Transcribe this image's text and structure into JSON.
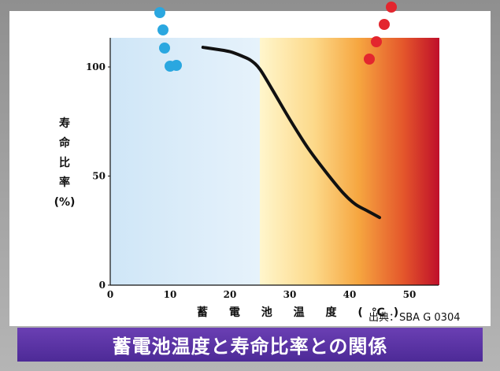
{
  "chart_data": {
    "type": "line",
    "title": "蓄電池温度と寿命比率との関係",
    "xlabel": "蓄 電 池 温 度 (℃)",
    "ylabel": [
      "寿",
      "命",
      "比",
      "率",
      "(%)"
    ],
    "source": "出典：SBA G 0304",
    "xlim": [
      0,
      55
    ],
    "ylim": [
      0,
      110
    ],
    "xticks": [
      0,
      10,
      20,
      30,
      40,
      50
    ],
    "yticks": [
      0,
      50,
      100
    ],
    "grid": false,
    "background_bands": [
      {
        "from": 0,
        "to": 25,
        "color": "#d9ecf8",
        "meaning": "cool"
      },
      {
        "from": 25,
        "to": 55,
        "color_start": "#fff6cc",
        "color_end": "#c4102a",
        "meaning": "hot"
      }
    ],
    "series": [
      {
        "color": "#111111",
        "x": [
          15.5,
          18,
          20,
          22,
          23.5,
          25,
          27,
          30,
          33,
          36,
          39,
          41,
          43,
          45
        ],
        "y": [
          109,
          108,
          107,
          105,
          103,
          99,
          90,
          76,
          63,
          52,
          42,
          37,
          34,
          31
        ]
      }
    ]
  },
  "decor": {
    "blue_dots_color": "#2aa7e0",
    "red_dots_color": "#e3262e"
  }
}
